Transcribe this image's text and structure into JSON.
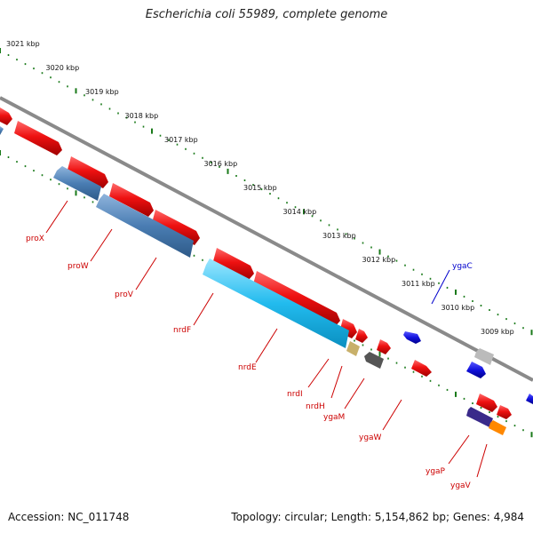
{
  "title": "Escherichia coli 55989, complete genome",
  "footer": {
    "accession": "Accession: NC_011748",
    "topology": "Topology: circular; Length: 5,154,862 bp; Genes: 4,984"
  },
  "ruler": [
    "3021 kbp",
    "3020 kbp",
    "3019 kbp",
    "3018 kbp",
    "3017 kbp",
    "3016 kbp",
    "3015 kbp",
    "3014 kbp",
    "3013 kbp",
    "3012 kbp",
    "3011 kbp",
    "3010 kbp",
    "3009 kbp"
  ],
  "genes": [
    {
      "name": "proX",
      "color": "#cc0000"
    },
    {
      "name": "proW",
      "color": "#cc0000"
    },
    {
      "name": "proV",
      "color": "#cc0000"
    },
    {
      "name": "nrdF",
      "color": "#cc0000"
    },
    {
      "name": "nrdE",
      "color": "#cc0000"
    },
    {
      "name": "nrdI",
      "color": "#cc0000"
    },
    {
      "name": "nrdH",
      "color": "#cc0000"
    },
    {
      "name": "ygaM",
      "color": "#cc0000"
    },
    {
      "name": "ygaW",
      "color": "#cc0000"
    },
    {
      "name": "ygaP",
      "color": "#cc0000"
    },
    {
      "name": "ygaV",
      "color": "#cc0000"
    },
    {
      "name": "ygaC",
      "color": "#0000cc"
    }
  ],
  "colors": {
    "backbone": "#8a8a8a",
    "tick_dots": "#1a7a1a",
    "forward_feature": "#ee1111",
    "blue_feature": "#1111dd",
    "steel_feature": "#4a7db3",
    "cyan_feature": "#22bbee",
    "tan_feature": "#c8b06a",
    "dark_gray_feature": "#555555",
    "light_gray_feature": "#bbbbbb",
    "purple_feature": "#3a2a8a",
    "orange_feature": "#ff8800"
  }
}
